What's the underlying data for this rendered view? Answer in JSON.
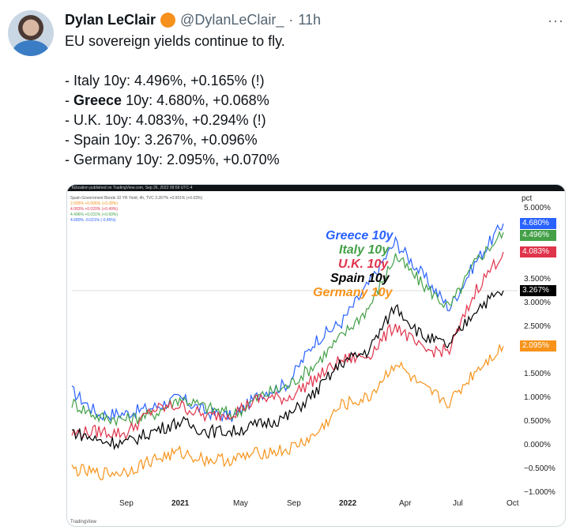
{
  "tweet": {
    "author_name": "Dylan LeClair",
    "handle": "@DylanLeClair_",
    "separator": "·",
    "time": "11h",
    "more": "···",
    "lines": [
      "EU sovereign yields continue to fly.",
      "",
      "- Italy 10y: 4.496%, +0.165% (!)",
      "- Greece 10y: 4.680%, +0.068%",
      "- U.K. 10y: 4.083%, +0.294% (!)",
      "- Spain 10y: 3.267%, +0.096%",
      "- Germany 10y: 2.095%, +0.070%"
    ],
    "greece_bold": "Greece",
    "greece_rest": " 10y: 4.680%, +0.068%",
    "greece_prefix": "- "
  },
  "chart": {
    "header_line1": "ttclization published on TradingView.com, Sep 26, 2022 09:59 UTC-4",
    "header_line2": "Spain Government Bonds 10 YR Yield, 4h, TVC  3.267%  +0.001% (+0.03%)",
    "header_lines": [
      "2.095%  +0.006% (+0.28%)",
      "4.083%  +0.020% (+0.49%)",
      "4.496%  +0.031% (+0.69%)",
      "4.680%  -0.021% (-0.45%)"
    ],
    "header_line_colors": [
      "#f7931a",
      "#e0344c",
      "#43a047",
      "#2962ff"
    ],
    "axis_unit": "pct",
    "y_ticks": [
      "5.000%",
      "3.500%",
      "3.000%",
      "2.500%",
      "1.500%",
      "1.000%",
      "0.500%",
      "0.000%",
      "−0.500%",
      "−1.000%"
    ],
    "x_ticks": [
      "Sep",
      "2021",
      "May",
      "Sep",
      "2022",
      "Apr",
      "Jul",
      "Oct"
    ],
    "tags": [
      {
        "label": "4.680%",
        "color": "#2962ff"
      },
      {
        "label": "4.496%",
        "color": "#43a047"
      },
      {
        "label": "4.083%",
        "color": "#e0344c"
      },
      {
        "label": "3.267%",
        "color": "#000000"
      },
      {
        "label": "2.095%",
        "color": "#f7931a"
      }
    ],
    "legend": [
      {
        "label": "Greece 10y",
        "color": "#2962ff"
      },
      {
        "label": "Italy 10y",
        "color": "#43a047"
      },
      {
        "label": "U.K. 10y",
        "color": "#e0344c"
      },
      {
        "label": "Spain 10y",
        "color": "#000000"
      },
      {
        "label": "Germany 10y",
        "color": "#f7931a"
      }
    ],
    "watermark": "TradingView"
  },
  "chart_data": {
    "type": "line",
    "title": "",
    "xlabel": "",
    "ylabel": "pct",
    "ylim": [
      -1.0,
      5.0
    ],
    "x": [
      "Sep 2020",
      "Dec 2020",
      "2021",
      "Mar 2021",
      "May 2021",
      "Jul 2021",
      "Sep 2021",
      "Nov 2021",
      "2022",
      "Feb 2022",
      "Apr 2022",
      "May 2022",
      "Jun 2022",
      "Jul 2022",
      "Aug 2022",
      "Sep 2022",
      "Oct 2022"
    ],
    "series": [
      {
        "name": "Greece 10y",
        "color": "#2962ff",
        "values": [
          1.15,
          0.65,
          0.68,
          0.8,
          1.0,
          0.7,
          0.6,
          1.1,
          1.3,
          2.2,
          2.6,
          3.4,
          4.3,
          3.6,
          2.9,
          3.9,
          4.68
        ]
      },
      {
        "name": "Italy 10y",
        "color": "#43a047",
        "values": [
          0.9,
          0.6,
          0.55,
          0.65,
          1.0,
          0.8,
          0.65,
          1.05,
          1.25,
          1.7,
          2.3,
          2.9,
          4.0,
          3.4,
          2.9,
          3.9,
          4.496
        ]
      },
      {
        "name": "U.K. 10y",
        "color": "#e0344c",
        "values": [
          0.25,
          0.3,
          0.25,
          0.75,
          0.85,
          0.6,
          0.7,
          1.0,
          1.0,
          1.4,
          1.8,
          1.9,
          2.55,
          2.0,
          2.0,
          3.3,
          4.083
        ]
      },
      {
        "name": "Spain 10y",
        "color": "#000000",
        "values": [
          0.3,
          0.1,
          0.05,
          0.3,
          0.5,
          0.3,
          0.3,
          0.45,
          0.6,
          1.1,
          1.75,
          2.0,
          2.95,
          2.3,
          2.1,
          2.9,
          3.267
        ]
      },
      {
        "name": "Germany 10y",
        "color": "#f7931a",
        "values": [
          -0.5,
          -0.6,
          -0.55,
          -0.3,
          -0.15,
          -0.3,
          -0.3,
          -0.15,
          -0.1,
          0.2,
          0.85,
          1.0,
          1.75,
          1.2,
          0.9,
          1.6,
          2.095
        ]
      }
    ],
    "grid": false,
    "legend_position": "top-center"
  }
}
